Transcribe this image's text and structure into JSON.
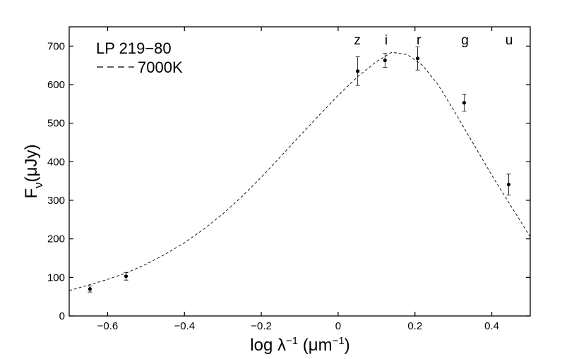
{
  "chart_data": {
    "type": "scatter",
    "xlim": [
      -0.7,
      0.5
    ],
    "ylim": [
      0,
      750
    ],
    "x_ticks": [
      -0.6,
      -0.4,
      -0.2,
      0,
      0.2,
      0.4
    ],
    "x_tick_labels": [
      "−0.6",
      "−0.4",
      "−0.2",
      "0",
      "0.2",
      "0.4"
    ],
    "y_ticks": [
      0,
      100,
      200,
      300,
      400,
      500,
      600,
      700
    ],
    "y_tick_labels": [
      "0",
      "100",
      "200",
      "300",
      "400",
      "500",
      "600",
      "700"
    ],
    "xlabel": {
      "base": "log λ",
      "sup": "−1",
      "unit_open": " (μm",
      "unit_sup": "−1",
      "unit_close": ")"
    },
    "ylabel": {
      "base": "F",
      "sub": "ν",
      "unit": "(μJy)"
    },
    "grid": false,
    "annotations": {
      "object": "LP 219−80",
      "model_legend": "7000K"
    },
    "band_labels": [
      {
        "label": "z",
        "x": 0.05
      },
      {
        "label": "i",
        "x": 0.125
      },
      {
        "label": "r",
        "x": 0.21
      },
      {
        "label": "g",
        "x": 0.33
      },
      {
        "label": "u",
        "x": 0.445
      }
    ],
    "series": [
      {
        "kind": "points",
        "points": [
          {
            "x": -0.646,
            "y": 70,
            "err": 8
          },
          {
            "x": -0.552,
            "y": 103,
            "err": 10
          },
          {
            "x": 0.051,
            "y": 635,
            "err": 37
          },
          {
            "x": 0.122,
            "y": 663,
            "err": 18
          },
          {
            "x": 0.207,
            "y": 668,
            "err": 30
          },
          {
            "x": 0.328,
            "y": 553,
            "err": 22
          },
          {
            "x": 0.444,
            "y": 341,
            "err": 27
          }
        ]
      },
      {
        "kind": "model",
        "line_style": "dashed",
        "points": [
          [
            -0.7,
            66
          ],
          [
            -0.65,
            80
          ],
          [
            -0.6,
            95
          ],
          [
            -0.55,
            112
          ],
          [
            -0.5,
            134
          ],
          [
            -0.45,
            160
          ],
          [
            -0.4,
            190
          ],
          [
            -0.35,
            225
          ],
          [
            -0.3,
            265
          ],
          [
            -0.25,
            310
          ],
          [
            -0.2,
            360
          ],
          [
            -0.15,
            413
          ],
          [
            -0.1,
            467
          ],
          [
            -0.05,
            520
          ],
          [
            0.0,
            572
          ],
          [
            0.05,
            620
          ],
          [
            0.1,
            660
          ],
          [
            0.14,
            684
          ],
          [
            0.18,
            678
          ],
          [
            0.22,
            650
          ],
          [
            0.26,
            600
          ],
          [
            0.3,
            535
          ],
          [
            0.35,
            450
          ],
          [
            0.4,
            365
          ],
          [
            0.45,
            285
          ],
          [
            0.5,
            205
          ]
        ]
      }
    ]
  }
}
